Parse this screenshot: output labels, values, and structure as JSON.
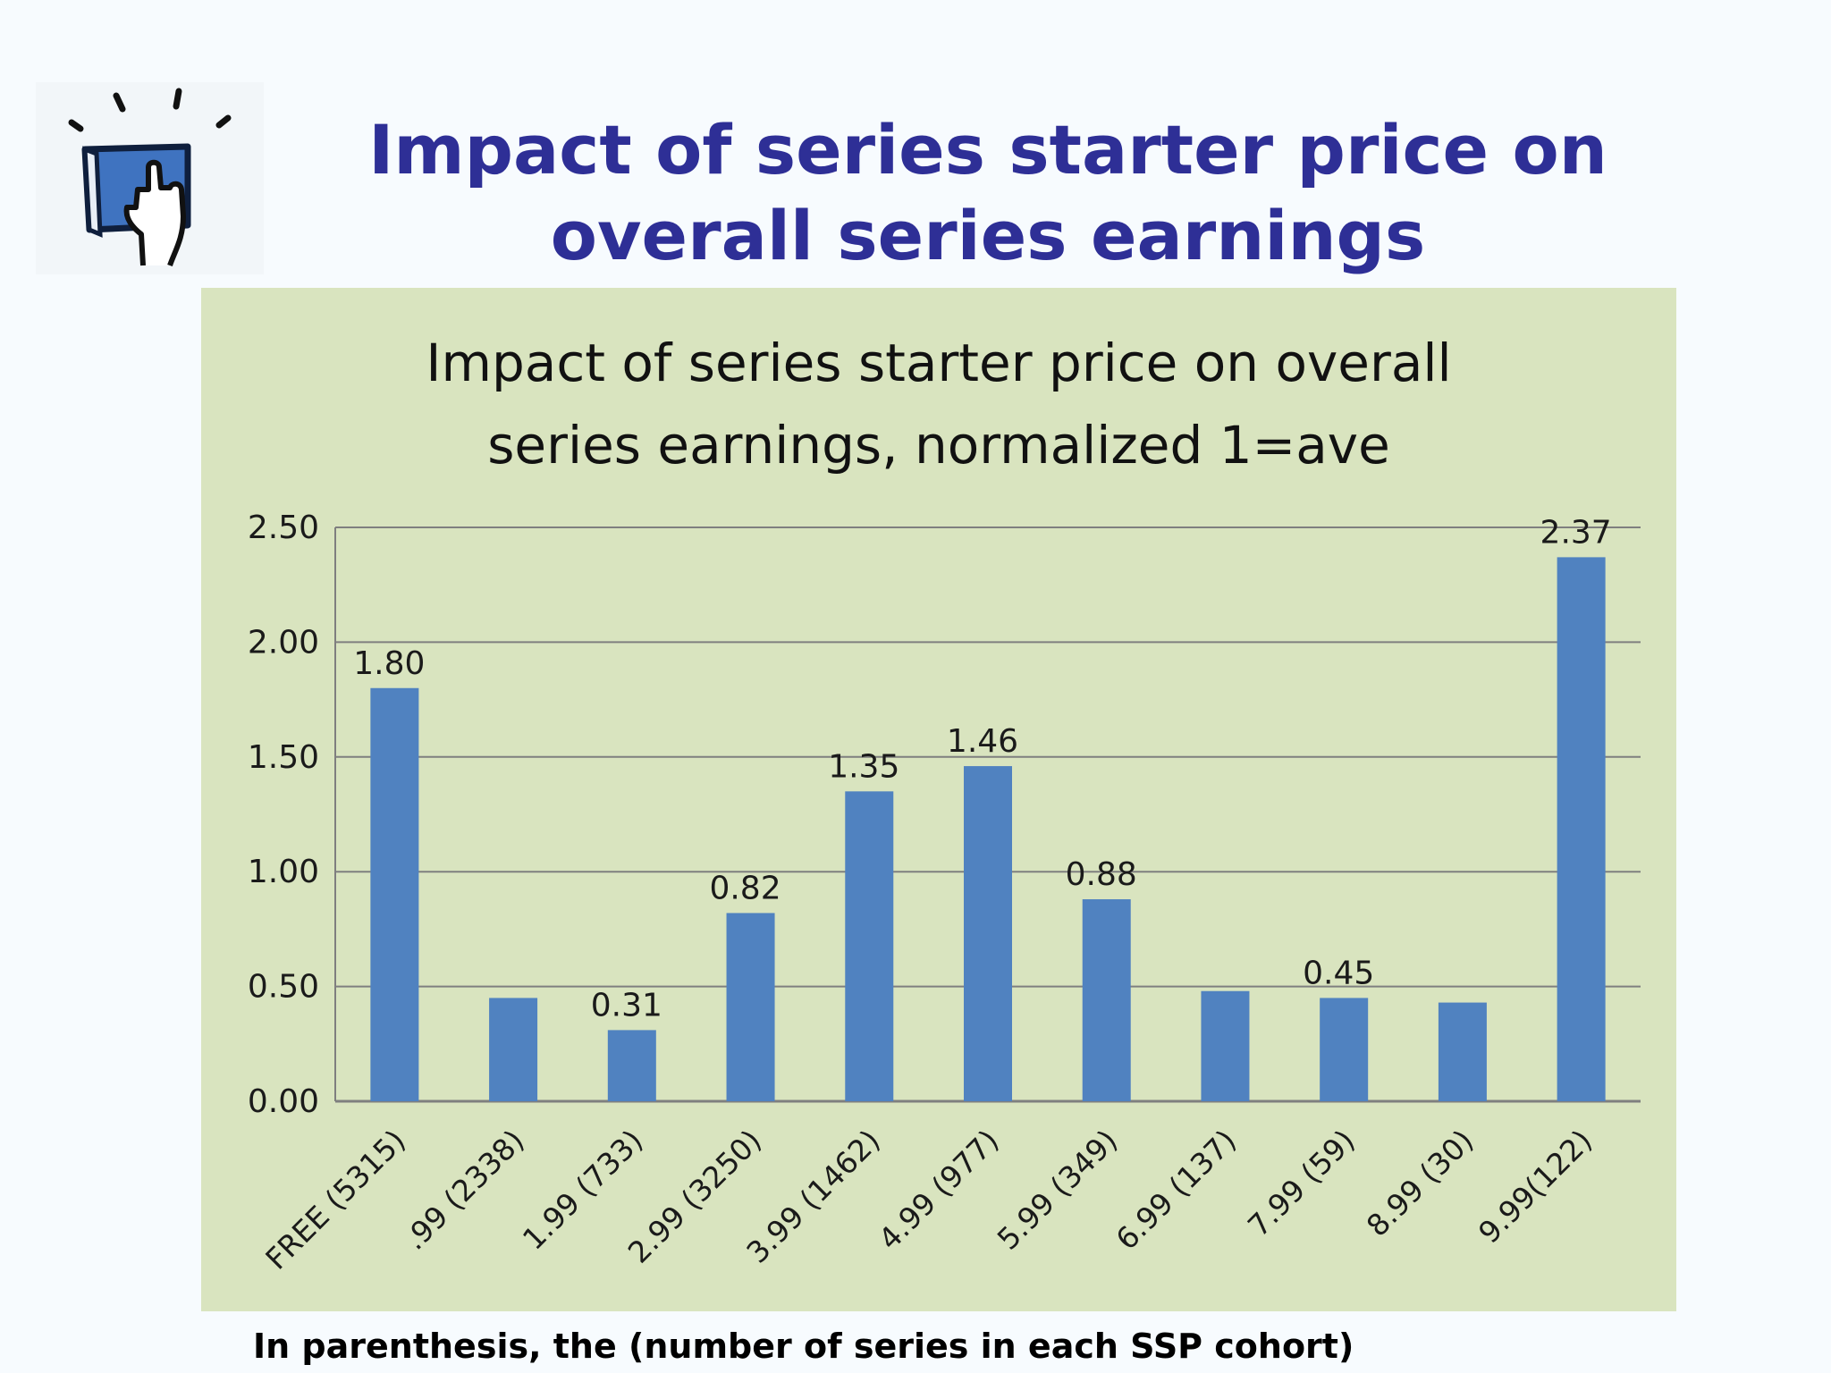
{
  "slide": {
    "title_line1": "Impact of series starter price on",
    "title_line2": "overall series earnings",
    "footnote": "In parenthesis, the (number of series in each SSP cohort)",
    "logo_icon": "hand-on-book-icon"
  },
  "colors": {
    "title": "#2e2f96",
    "panel_bg": "#d9e4bf",
    "bar": "#5082c0",
    "grid": "#7f7f7f"
  },
  "chart_data": {
    "type": "bar",
    "title_line1": "Impact of series starter price on overall",
    "title_line2": "series earnings, normalized 1=ave",
    "categories": [
      "FREE (5315)",
      ".99 (2338)",
      "1.99 (733)",
      "2.99 (3250)",
      "3.99 (1462)",
      "4.99 (977)",
      "5.99 (349)",
      "6.99 (137)",
      "7.99 (59)",
      "8.99 (30)",
      "9.99(122)"
    ],
    "values": [
      1.8,
      0.45,
      0.31,
      0.82,
      1.35,
      1.46,
      0.88,
      0.48,
      0.45,
      0.43,
      2.37
    ],
    "data_labels": [
      "1.80",
      "",
      "0.31",
      "0.82",
      "1.35",
      "1.46",
      "0.88",
      "",
      "0.45",
      "",
      "2.37"
    ],
    "y_ticks": [
      "0.00",
      "0.50",
      "1.00",
      "1.50",
      "2.00",
      "2.50"
    ],
    "ylim": [
      0,
      2.5
    ],
    "grid": true,
    "legend": "none"
  }
}
